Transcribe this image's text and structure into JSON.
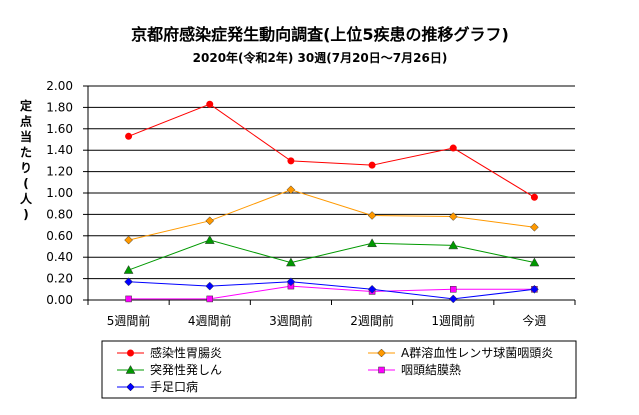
{
  "chart_data": {
    "type": "line",
    "title": "京都府感染症発生動向調査(上位5疾患の推移グラフ)",
    "subtitle": "2020年(令和2年) 30週(7月20日～7月26日)",
    "ylabel": "定点当たり(人)",
    "xlabel": "",
    "categories": [
      "5週間前",
      "4週間前",
      "3週間前",
      "2週間前",
      "1週間前",
      "今週"
    ],
    "ylim": [
      0,
      2.0
    ],
    "yticks": [
      "0.00",
      "0.20",
      "0.40",
      "0.60",
      "0.80",
      "1.00",
      "1.20",
      "1.40",
      "1.60",
      "1.80",
      "2.00"
    ],
    "grid": true,
    "legend_position": "bottom",
    "series": [
      {
        "name": "感染性胃腸炎",
        "values": [
          1.53,
          1.83,
          1.3,
          1.26,
          1.42,
          0.96
        ],
        "color": "#ff0000",
        "marker": "circle"
      },
      {
        "name": "A群溶血性レンサ球菌咽頭炎",
        "values": [
          0.56,
          0.74,
          1.03,
          0.79,
          0.78,
          0.68
        ],
        "color": "#ff9900",
        "marker": "diamond"
      },
      {
        "name": "突発性発しん",
        "values": [
          0.28,
          0.56,
          0.35,
          0.53,
          0.51,
          0.35
        ],
        "color": "#009900",
        "marker": "triangle"
      },
      {
        "name": "咽頭結膜熱",
        "values": [
          0.01,
          0.01,
          0.13,
          0.08,
          0.1,
          0.1
        ],
        "color": "#ff00ff",
        "marker": "square"
      },
      {
        "name": "手足口病",
        "values": [
          0.17,
          0.13,
          0.17,
          0.1,
          0.01,
          0.1
        ],
        "color": "#0000ff",
        "marker": "diamond"
      }
    ]
  }
}
